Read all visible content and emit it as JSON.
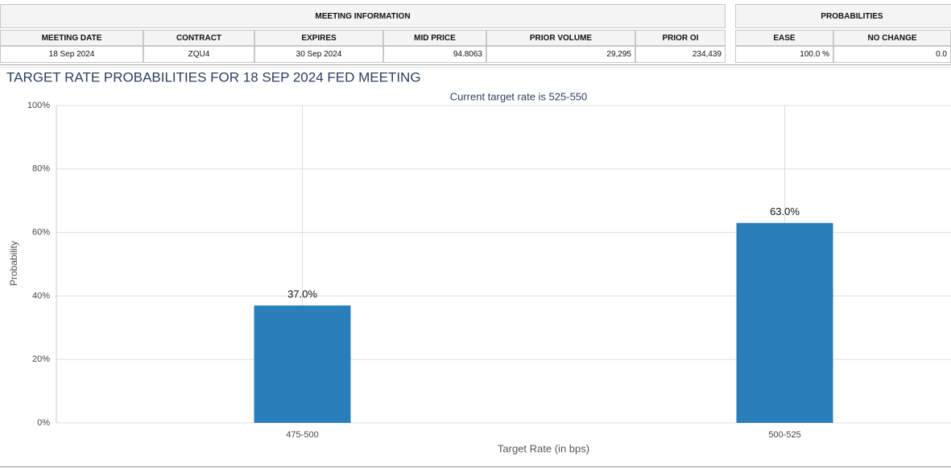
{
  "meeting_table": {
    "title": "MEETING INFORMATION",
    "columns": [
      "MEETING DATE",
      "CONTRACT",
      "EXPIRES",
      "MID PRICE",
      "PRIOR VOLUME",
      "PRIOR OI"
    ],
    "rows": [
      [
        "18 Sep 2024",
        "ZQU4",
        "30 Sep 2024",
        "94.8063",
        "29,295",
        "234,439"
      ]
    ]
  },
  "prob_table": {
    "title": "PROBABILITIES",
    "columns": [
      "EASE",
      "NO CHANGE"
    ],
    "rows": [
      [
        "100.0 %",
        "0.0"
      ]
    ]
  },
  "chart_data": {
    "type": "bar",
    "title": "TARGET RATE PROBABILITIES FOR 18 SEP 2024 FED MEETING",
    "subtitle": "Current target rate is 525-550",
    "x_label": "Target Rate (in bps)",
    "y_label": "Probability",
    "categories": [
      "475-500",
      "500-525"
    ],
    "values": [
      37.0,
      63.0
    ],
    "value_labels": [
      "37.0%",
      "63.0%"
    ],
    "color": "#2a7fba",
    "ylim": [
      0,
      100
    ],
    "yticks": [
      {
        "value": 0,
        "label": "0%"
      },
      {
        "value": 20,
        "label": "20%"
      },
      {
        "value": 40,
        "label": "40%"
      },
      {
        "value": 60,
        "label": "60%"
      },
      {
        "value": 80,
        "label": "80%"
      },
      {
        "value": 100,
        "label": "100%"
      }
    ],
    "grid": true
  }
}
